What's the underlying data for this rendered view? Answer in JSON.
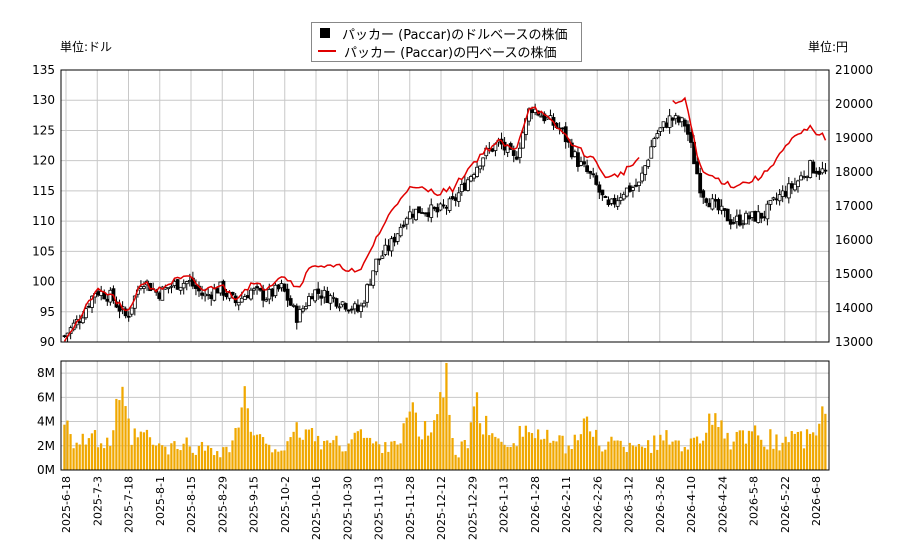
{
  "legend": {
    "usd_label": "パッカー (Paccar)のドルベースの株価",
    "jpy_label": "パッカー (Paccar)の円ベースの株価"
  },
  "units": {
    "left": "単位:ドル",
    "right": "単位:円"
  },
  "colors": {
    "candle": "#000000",
    "jpy_line": "#e00000",
    "volume": "#f0a800",
    "grid": "#c8c8c8"
  },
  "chart_data": {
    "type": "candlestick+line+bar",
    "price_axis": {
      "ylim": [
        90,
        135
      ],
      "ticks": [
        90,
        95,
        100,
        105,
        110,
        115,
        120,
        125,
        130,
        135
      ]
    },
    "yen_axis": {
      "ylim": [
        13000,
        21000
      ],
      "ticks": [
        13000,
        14000,
        15000,
        16000,
        17000,
        18000,
        19000,
        20000,
        21000
      ]
    },
    "volume_axis": {
      "ylim": [
        0,
        9000000
      ],
      "ticks": [
        0,
        2000000,
        4000000,
        6000000,
        8000000
      ],
      "tick_labels": [
        "0M",
        "2M",
        "4M",
        "6M",
        "8M"
      ]
    },
    "date_ticks": [
      "2025-6-18",
      "2025-7-3",
      "2025-7-18",
      "2025-8-1",
      "2025-8-15",
      "2025-8-29",
      "2025-9-15",
      "2025-10-2",
      "2025-10-16",
      "2025-10-30",
      "2025-11-13",
      "2025-11-28",
      "2025-12-12",
      "2025-12-29",
      "2026-1-13",
      "2026-1-28",
      "2026-2-11",
      "2026-2-26",
      "2026-3-12",
      "2026-3-26",
      "2026-4-10",
      "2026-4-24",
      "2026-5-8",
      "2026-5-22",
      "2026-6-8"
    ],
    "usd_close_trend": [
      91.0,
      94.0,
      98.5,
      97.5,
      94.0,
      100.5,
      98.0,
      99.5,
      100.0,
      97.5,
      99.0,
      96.5,
      98.5,
      97.5,
      99.0,
      94.0,
      98.5,
      97.5,
      96.5,
      95.0,
      103.0,
      106.0,
      111.0,
      112.0,
      111.5,
      113.0,
      117.0,
      121.0,
      123.0,
      120.0,
      129.0,
      127.0,
      125.0,
      120.0,
      117.0,
      112.0,
      115.0,
      116.0,
      124.0,
      127.0,
      126.0,
      115.0,
      112.0,
      110.0,
      110.5,
      111.0,
      114.0,
      116.0,
      119.0,
      118.0
    ],
    "jpy_close_trend": [
      13100,
      13700,
      14500,
      14400,
      13800,
      14800,
      14500,
      14800,
      14900,
      14500,
      14700,
      14300,
      14700,
      14600,
      15000,
      14600,
      15300,
      15200,
      15200,
      15000,
      16000,
      16800,
      17500,
      17500,
      17400,
      17500,
      18100,
      18600,
      18900,
      18600,
      20000,
      19600,
      19200,
      18700,
      18400,
      17800,
      18000,
      18400,
      null,
      20000,
      20100,
      18000,
      17800,
      17600,
      17700,
      17900,
      18500,
      19000,
      19300,
      19000
    ],
    "volume_profile_millions": [
      5.8,
      2.6,
      3.2,
      2.8,
      2.4,
      6.8,
      3.0,
      3.4,
      2.5,
      2.0,
      2.2,
      2.5,
      2.0,
      2.3,
      1.8,
      2.4,
      7.0,
      2.6,
      3.0,
      2.2,
      2.1,
      4.0,
      3.5,
      2.8,
      2.6,
      2.4,
      3.8,
      3.0,
      2.2,
      2.7,
      3.2,
      5.5,
      3.4,
      4.1,
      9.0,
      1.5,
      2.8,
      6.3,
      3.0,
      3.2,
      2.9,
      4.0,
      3.6,
      3.0,
      2.6,
      2.4,
      3.5,
      4.2,
      2.5,
      2.7,
      2.2,
      3.0,
      2.4,
      2.6,
      3.1,
      2.8,
      2.5,
      3.5,
      6.3,
      2.6,
      3.0,
      2.8,
      3.4,
      3.0,
      2.5,
      3.6,
      2.9,
      3.2,
      5.8
    ]
  }
}
